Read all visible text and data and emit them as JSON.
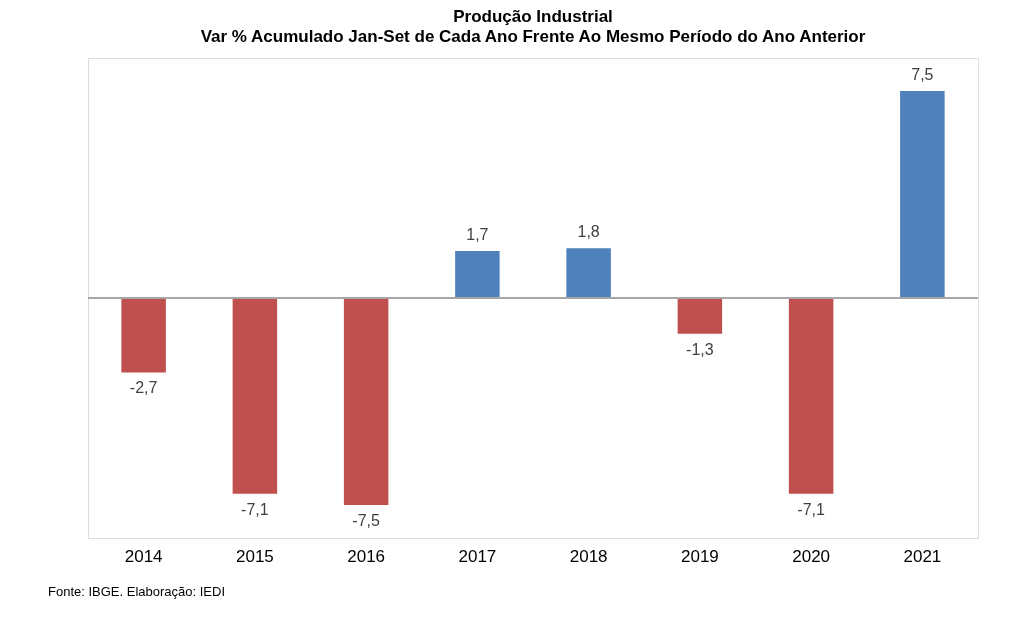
{
  "chart_data": {
    "type": "bar",
    "title": "Produção  Industrial",
    "subtitle": "Var % Acumulado Jan-Set de Cada Ano Frente Ao Mesmo Período do Ano Anterior",
    "categories": [
      "2014",
      "2015",
      "2016",
      "2017",
      "2018",
      "2019",
      "2020",
      "2021"
    ],
    "values": [
      -2.7,
      -7.1,
      -7.5,
      1.7,
      1.8,
      -1.3,
      -7.1,
      7.5
    ],
    "colors": [
      "#c0504d",
      "#c0504d",
      "#c0504d",
      "#4f81bd",
      "#4f81bd",
      "#c0504d",
      "#c0504d",
      "#4f81bd"
    ],
    "value_labels": [
      "-2,7",
      "-7,1",
      "-7,5",
      "1,7",
      "1,8",
      "-1,3",
      "-7,1",
      "7,5"
    ],
    "grid": false,
    "annotations": [
      "Fonte: IBGE. Elaboração: IEDI"
    ]
  }
}
